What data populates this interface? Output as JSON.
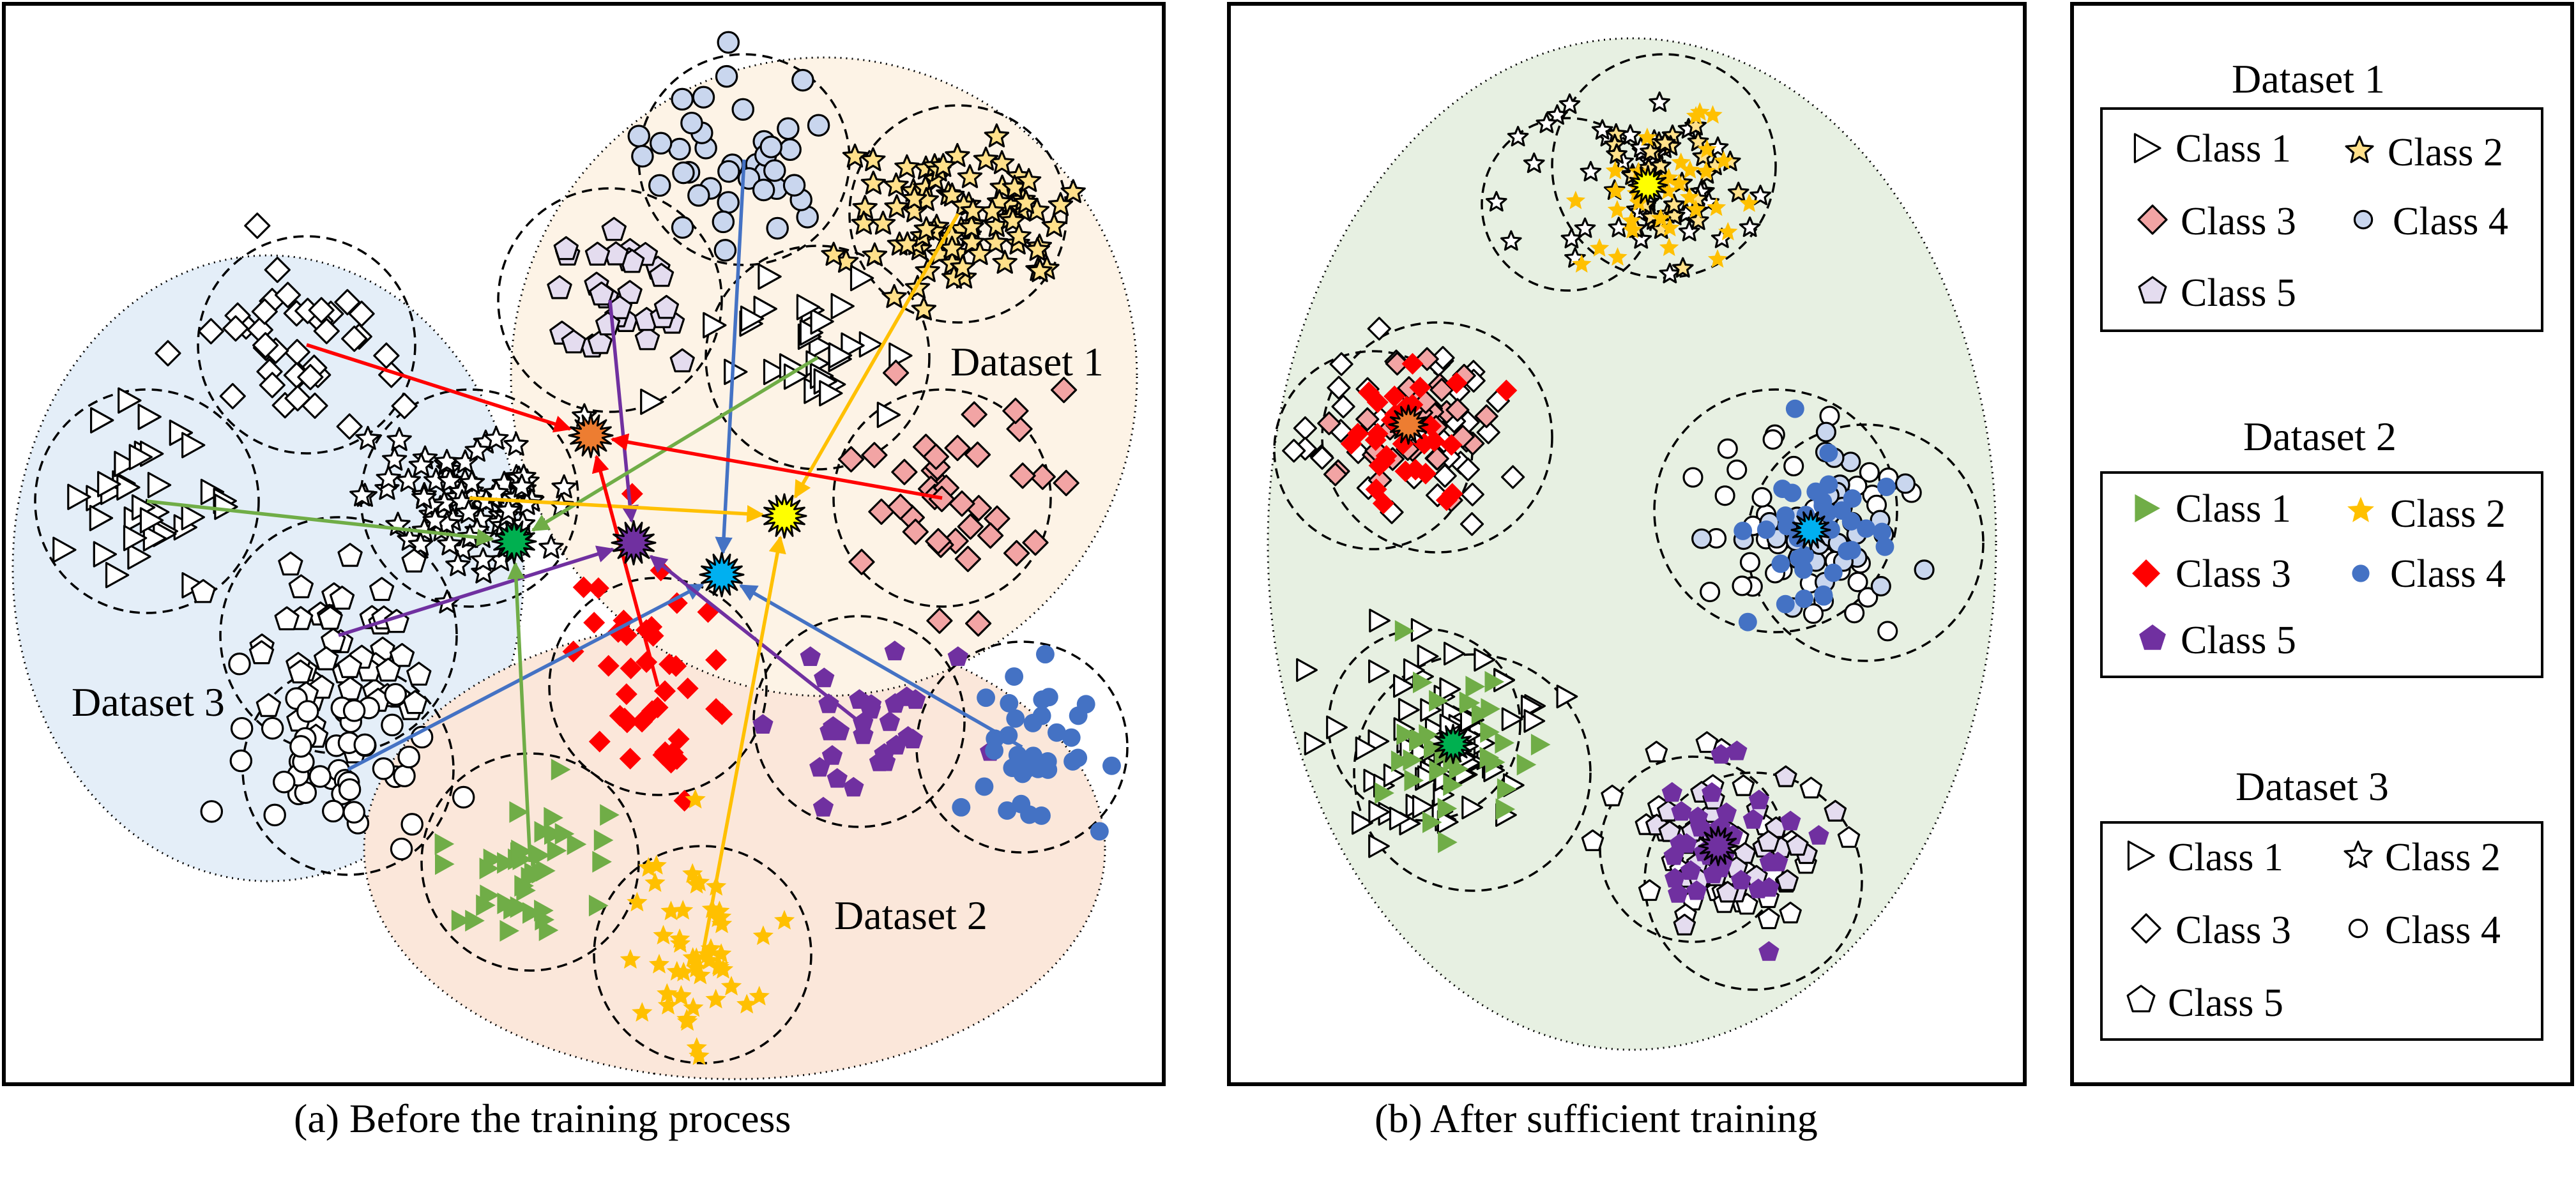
{
  "panels": {
    "a": {
      "caption": "(a) Before the training process",
      "dataset_labels": [
        "Dataset 1",
        "Dataset 2",
        "Dataset 3"
      ]
    },
    "b": {
      "caption": "(b) After sufficient training"
    }
  },
  "legend": {
    "groups": [
      {
        "title": "Dataset 1",
        "style": "black outline, colored fill",
        "items": [
          {
            "label": "Class 1",
            "marker": "triangle-right-outline-icon",
            "fill": "#ffffff"
          },
          {
            "label": "Class 2",
            "marker": "star-outline-icon",
            "fill": "#ffe08a"
          },
          {
            "label": "Class 3",
            "marker": "diamond-outline-icon",
            "fill": "#f2a4a4"
          },
          {
            "label": "Class 4",
            "marker": "circle-outline-icon",
            "fill": "#c9d6ee"
          },
          {
            "label": "Class 5",
            "marker": "pentagon-outline-icon",
            "fill": "#e4dcef"
          }
        ]
      },
      {
        "title": "Dataset 2",
        "style": "solid colored",
        "items": [
          {
            "label": "Class 1",
            "marker": "triangle-right-solid-icon",
            "fill": "#70ad47"
          },
          {
            "label": "Class 2",
            "marker": "star-solid-icon",
            "fill": "#ffc000"
          },
          {
            "label": "Class 3",
            "marker": "diamond-solid-icon",
            "fill": "#ff0000"
          },
          {
            "label": "Class 4",
            "marker": "circle-solid-icon",
            "fill": "#4472c4"
          },
          {
            "label": "Class 5",
            "marker": "pentagon-solid-icon",
            "fill": "#7030a0"
          }
        ]
      },
      {
        "title": "Dataset 3",
        "style": "black outline, white fill",
        "items": [
          {
            "label": "Class 1",
            "marker": "triangle-right-hollow-icon",
            "fill": "#ffffff"
          },
          {
            "label": "Class 2",
            "marker": "star-hollow-icon",
            "fill": "#ffffff"
          },
          {
            "label": "Class 3",
            "marker": "diamond-hollow-icon",
            "fill": "#ffffff"
          },
          {
            "label": "Class 4",
            "marker": "circle-hollow-icon",
            "fill": "#ffffff"
          },
          {
            "label": "Class 5",
            "marker": "pentagon-hollow-icon",
            "fill": "#ffffff"
          }
        ]
      }
    ]
  },
  "colors": {
    "dataset1_region": "#fdf3e6",
    "dataset2_region": "#fbe7da",
    "dataset3_region": "#e4eef8",
    "merged_region": "#e7f0e2",
    "prototype_class1": "#00b050",
    "prototype_class2": "#ffff00",
    "prototype_class3": "#ed7d31",
    "prototype_class4": "#00b0f0",
    "prototype_class5": "#7030a0",
    "arrow_class1": "#70ad47",
    "arrow_class2": "#ffc000",
    "arrow_class3": "#ff0000",
    "arrow_class4": "#4472c4",
    "arrow_class5": "#7030a0"
  }
}
